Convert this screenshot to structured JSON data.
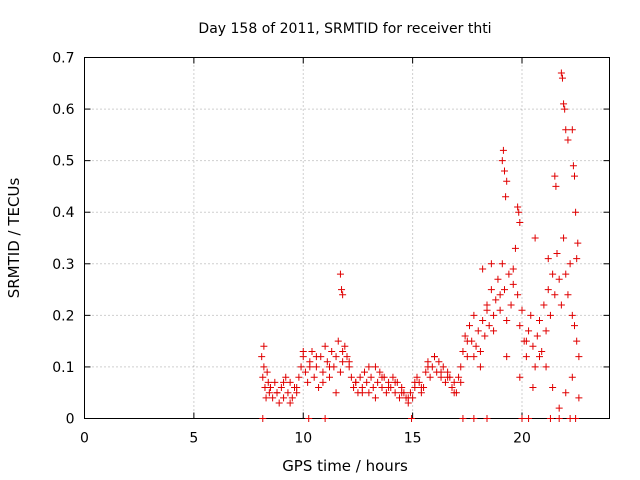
{
  "chart_data": {
    "type": "scatter",
    "title": "Day 158 of 2011, SRMTID for receiver thti",
    "xlabel": "GPS time / hours",
    "ylabel": "SRMTID / TECUs",
    "xlim": [
      0,
      24
    ],
    "ylim": [
      0,
      0.7
    ],
    "xticks": [
      0,
      5,
      10,
      15,
      20
    ],
    "yticks": [
      0,
      0.1,
      0.2,
      0.3,
      0.4,
      0.5,
      0.6,
      0.7
    ],
    "xtick_labels": [
      "0",
      "5",
      "10",
      "15",
      "20"
    ],
    "ytick_labels": [
      "0",
      "0.1",
      "0.2",
      "0.3",
      "0.4",
      "0.5",
      "0.6",
      "0.7"
    ],
    "grid": true,
    "marker": "+",
    "series": [
      {
        "name": "SRMTID",
        "color": "#e00000",
        "x": [
          8.1,
          8.15,
          8.2,
          8.25,
          8.3,
          8.35,
          8.4,
          8.45,
          8.5,
          8.6,
          8.7,
          8.8,
          8.9,
          9.0,
          9.1,
          9.2,
          9.3,
          9.4,
          9.5,
          9.6,
          9.7,
          9.8,
          9.9,
          10.0,
          10.1,
          10.2,
          10.3,
          10.4,
          10.5,
          10.6,
          10.7,
          10.8,
          10.9,
          11.0,
          11.1,
          11.2,
          11.3,
          11.4,
          11.5,
          11.6,
          11.7,
          11.8,
          11.9,
          12.0,
          12.1,
          12.2,
          12.3,
          12.4,
          12.5,
          12.6,
          12.7,
          12.8,
          12.9,
          13.0,
          13.1,
          13.2,
          13.3,
          13.4,
          13.5,
          13.6,
          13.7,
          13.8,
          13.9,
          14.0,
          14.1,
          14.2,
          14.3,
          14.4,
          14.5,
          14.6,
          14.7,
          14.8,
          14.9,
          15.0,
          15.1,
          15.2,
          15.3,
          15.4,
          15.5,
          15.6,
          15.7,
          15.8,
          15.9,
          16.0,
          16.1,
          16.2,
          16.3,
          16.4,
          16.5,
          16.6,
          16.7,
          16.8,
          16.9,
          17.0,
          17.1,
          17.2,
          17.3,
          17.4,
          17.5,
          17.6,
          17.7,
          17.8,
          17.9,
          18.0,
          18.1,
          18.2,
          18.3,
          18.4,
          18.5,
          18.6,
          18.7,
          18.8,
          18.9,
          19.0,
          19.1,
          19.2,
          19.3,
          19.4,
          19.5,
          19.6,
          19.7,
          19.8,
          19.9,
          20.0,
          20.1,
          20.2,
          20.3,
          20.4,
          20.5,
          20.6,
          20.7,
          20.8,
          20.9,
          21.0,
          21.1,
          21.2,
          21.3,
          21.4,
          21.5,
          21.6,
          21.7,
          21.8,
          21.9,
          22.0,
          22.1,
          22.2,
          22.3,
          22.4,
          22.5,
          22.6,
          8.2,
          8.5,
          8.8,
          9.1,
          9.4,
          9.7,
          10.0,
          10.3,
          10.6,
          10.9,
          11.2,
          11.5,
          11.8,
          12.1,
          12.4,
          12.7,
          13.0,
          13.3,
          13.6,
          13.9,
          14.2,
          14.5,
          14.8,
          15.1,
          15.4,
          15.7,
          16.0,
          16.3,
          16.6,
          16.9,
          17.2,
          17.5,
          17.8,
          18.1,
          18.4,
          18.7,
          19.0,
          19.3,
          19.6,
          19.9,
          20.2,
          20.5,
          20.8,
          21.1,
          21.4,
          21.7,
          22.0,
          22.3,
          22.6,
          11.7,
          11.75,
          11.8,
          19.1,
          19.15,
          19.2,
          19.25,
          19.3,
          19.8,
          19.85,
          19.9,
          21.8,
          21.85,
          21.9,
          21.95,
          22.0,
          22.1,
          22.3,
          22.35,
          22.4,
          22.45,
          21.5,
          21.55,
          18.2,
          18.6,
          20.6,
          21.2,
          22.5,
          22.55,
          8.15,
          10.25,
          11.0,
          14.95,
          17.3,
          17.8,
          18.4,
          20.0,
          20.3,
          21.3,
          21.7,
          22.2,
          22.45
        ],
        "y": [
          0.12,
          0.08,
          0.1,
          0.06,
          0.04,
          0.09,
          0.07,
          0.05,
          0.06,
          0.04,
          0.07,
          0.05,
          0.03,
          0.06,
          0.04,
          0.08,
          0.05,
          0.07,
          0.04,
          0.06,
          0.05,
          0.08,
          0.1,
          0.12,
          0.09,
          0.07,
          0.11,
          0.13,
          0.08,
          0.1,
          0.06,
          0.12,
          0.09,
          0.14,
          0.11,
          0.08,
          0.13,
          0.1,
          0.12,
          0.15,
          0.09,
          0.11,
          0.14,
          0.12,
          0.1,
          0.08,
          0.06,
          0.07,
          0.05,
          0.08,
          0.06,
          0.09,
          0.07,
          0.05,
          0.08,
          0.06,
          0.1,
          0.07,
          0.09,
          0.06,
          0.08,
          0.05,
          0.07,
          0.06,
          0.08,
          0.05,
          0.07,
          0.04,
          0.06,
          0.05,
          0.04,
          0.03,
          0.05,
          0.04,
          0.06,
          0.08,
          0.07,
          0.05,
          0.06,
          0.09,
          0.11,
          0.08,
          0.1,
          0.12,
          0.09,
          0.11,
          0.08,
          0.1,
          0.07,
          0.09,
          0.08,
          0.06,
          0.07,
          0.05,
          0.08,
          0.1,
          0.13,
          0.16,
          0.12,
          0.18,
          0.15,
          0.2,
          0.14,
          0.17,
          0.13,
          0.19,
          0.16,
          0.22,
          0.18,
          0.25,
          0.2,
          0.23,
          0.27,
          0.21,
          0.3,
          0.25,
          0.19,
          0.28,
          0.22,
          0.26,
          0.33,
          0.24,
          0.18,
          0.21,
          0.15,
          0.12,
          0.17,
          0.2,
          0.14,
          0.1,
          0.16,
          0.19,
          0.13,
          0.22,
          0.17,
          0.25,
          0.2,
          0.28,
          0.24,
          0.32,
          0.27,
          0.22,
          0.35,
          0.28,
          0.24,
          0.3,
          0.2,
          0.18,
          0.15,
          0.12,
          0.14,
          0.06,
          0.05,
          0.07,
          0.03,
          0.06,
          0.13,
          0.1,
          0.12,
          0.07,
          0.1,
          0.05,
          0.13,
          0.11,
          0.07,
          0.05,
          0.1,
          0.04,
          0.08,
          0.06,
          0.07,
          0.05,
          0.04,
          0.07,
          0.06,
          0.1,
          0.12,
          0.09,
          0.08,
          0.05,
          0.07,
          0.15,
          0.12,
          0.1,
          0.21,
          0.17,
          0.24,
          0.12,
          0.29,
          0.08,
          0.15,
          0.06,
          0.12,
          0.1,
          0.06,
          0.02,
          0.05,
          0.08,
          0.04,
          0.28,
          0.25,
          0.24,
          0.5,
          0.52,
          0.48,
          0.43,
          0.46,
          0.41,
          0.4,
          0.38,
          0.67,
          0.66,
          0.61,
          0.6,
          0.56,
          0.54,
          0.56,
          0.49,
          0.47,
          0.4,
          0.47,
          0.45,
          0.29,
          0.3,
          0.35,
          0.31,
          0.31,
          0.34,
          0,
          0,
          0,
          0,
          0,
          0,
          0,
          0,
          0,
          0,
          0,
          0,
          0
        ]
      }
    ]
  }
}
